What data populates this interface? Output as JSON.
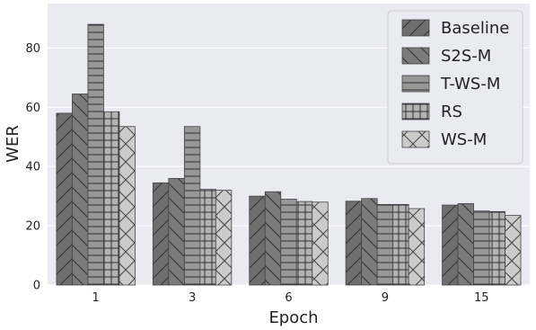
{
  "chart_data": {
    "type": "bar",
    "xlabel": "Epoch",
    "ylabel": "WER",
    "categories": [
      "1",
      "3",
      "6",
      "9",
      "15"
    ],
    "ylim": [
      0,
      95
    ],
    "yticks": [
      0,
      20,
      40,
      60,
      80
    ],
    "grid": true,
    "legend_position": "top-right",
    "series": [
      {
        "name": "Baseline",
        "values": [
          58,
          34.5,
          30,
          28.3,
          27
        ],
        "color": "#6e6e6e",
        "hatch": "diag-forward"
      },
      {
        "name": "S2S-M",
        "values": [
          64.5,
          36,
          31.5,
          29.2,
          27.5
        ],
        "color": "#7b7b7b",
        "hatch": "diag-back"
      },
      {
        "name": "T-WS-M",
        "values": [
          88,
          53.5,
          29,
          27.2,
          25
        ],
        "color": "#979797",
        "hatch": "horizontal"
      },
      {
        "name": "RS",
        "values": [
          58.5,
          32.3,
          28.2,
          27.2,
          24.8
        ],
        "color": "#b3b3b3",
        "hatch": "grid"
      },
      {
        "name": "WS-M",
        "values": [
          53.5,
          32,
          28,
          25.8,
          23.5
        ],
        "color": "#cbcbcb",
        "hatch": "crosshatch"
      }
    ]
  }
}
